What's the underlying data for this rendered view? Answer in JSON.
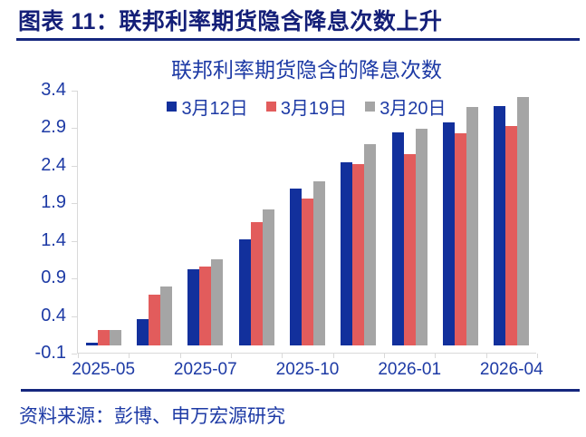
{
  "header": {
    "title": "图表 11：联邦利率期货隐含降息次数上升"
  },
  "source": {
    "text": "资料来源：彭博、申万宏源研究"
  },
  "colors": {
    "header_navy": "#141f78",
    "rule_navy": "#15277e",
    "chart_text_blue": "#1d3aa5",
    "axis_gray": "#d9d9d9",
    "bar_blue": "#12309c",
    "bar_red": "#e25c5c",
    "bar_gray": "#a5a5a5"
  },
  "chart_data": {
    "type": "bar",
    "title": "联邦利率期货隐含的降息次数",
    "categories": [
      "2025-05",
      "",
      "2025-07",
      "",
      "2025-10",
      "",
      "2026-01",
      "",
      "2026-04"
    ],
    "series": [
      {
        "name": "3月12日",
        "color": "#12309c",
        "values": [
          0.04,
          0.35,
          1.01,
          1.41,
          2.09,
          2.44,
          2.84,
          2.97,
          3.19
        ]
      },
      {
        "name": "3月19日",
        "color": "#e25c5c",
        "values": [
          0.2,
          0.68,
          1.05,
          1.64,
          1.95,
          2.41,
          2.55,
          2.82,
          2.92
        ]
      },
      {
        "name": "3月20日",
        "color": "#a5a5a5",
        "values": [
          0.2,
          0.79,
          1.15,
          1.81,
          2.19,
          2.68,
          2.88,
          3.17,
          3.31
        ]
      }
    ],
    "y_ticks": [
      3.4,
      2.9,
      2.4,
      1.9,
      1.4,
      0.9,
      0.4,
      -0.1
    ],
    "ylim": [
      -0.1,
      3.4
    ],
    "xlabel": "",
    "ylabel": "",
    "grid": false,
    "legend_position": "top"
  }
}
